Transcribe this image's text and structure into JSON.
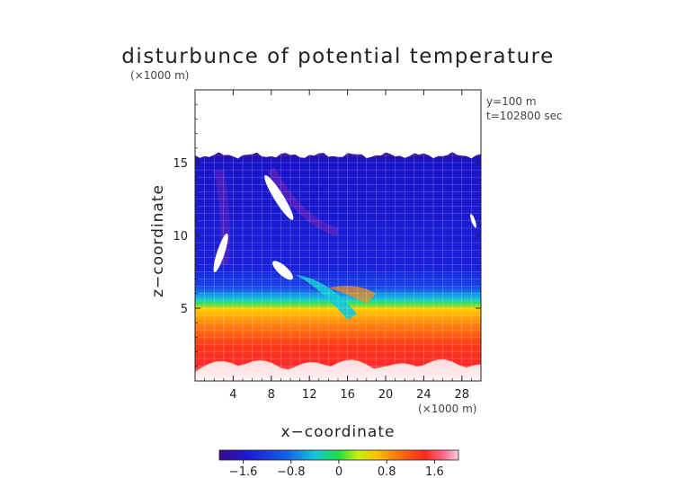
{
  "chart_data": {
    "type": "heatmap",
    "title": "disturbunce of potential temperature",
    "y_unit_label": "(×1000 m)",
    "x_unit_label": "(×1000 m)",
    "xlabel": "x−coordinate",
    "ylabel": "z−coordinate",
    "annotations": [
      "y=100 m",
      "t=102800 sec"
    ],
    "xlim": [
      0,
      30
    ],
    "ylim": [
      0,
      20
    ],
    "x_ticks": [
      4,
      8,
      12,
      16,
      20,
      24,
      28
    ],
    "x_tick_labels": [
      "4",
      "8",
      "12",
      "16",
      "20",
      "24",
      "28"
    ],
    "y_ticks": [
      5,
      10,
      15
    ],
    "y_tick_labels": [
      "5",
      "10",
      "15"
    ],
    "colorbar": {
      "range": [
        -2.0,
        2.0
      ],
      "ticks": [
        -1.6,
        -0.8,
        0,
        0.8,
        1.6
      ],
      "tick_labels": [
        "−1.6",
        "−0.8",
        "0",
        "0.8",
        "1.6"
      ]
    },
    "field_top_height": 15.5,
    "white_regions": [
      {
        "x": 8.8,
        "y": 12.6,
        "rx": 0.5,
        "ry": 1.8,
        "angle": -32
      },
      {
        "x": 2.7,
        "y": 8.8,
        "rx": 0.4,
        "ry": 1.4,
        "angle": 18
      },
      {
        "x": 9.2,
        "y": 7.6,
        "rx": 0.5,
        "ry": 0.9,
        "angle": -48
      },
      {
        "x": 29.2,
        "y": 11.0,
        "rx": 0.2,
        "ry": 0.5,
        "angle": -20
      }
    ]
  }
}
